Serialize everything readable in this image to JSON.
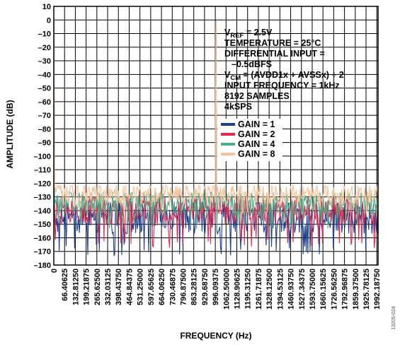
{
  "chart_data": {
    "type": "line",
    "title": "",
    "xlabel": "FREQUENCY (Hz)",
    "ylabel": "AMPLITUDE (dB)",
    "xlim": [
      0,
      2000
    ],
    "ylim": [
      -180,
      10
    ],
    "y_ticks": [
      "10",
      "0",
      "–10",
      "–20",
      "–30",
      "–40",
      "–50",
      "–60",
      "–70",
      "–80",
      "–90",
      "–100",
      "–110",
      "–120",
      "–130",
      "–140",
      "–150",
      "–160",
      "–170",
      "–180"
    ],
    "x_ticks": [
      0,
      66.40625,
      132.8125,
      199.21875,
      265.625,
      332.03125,
      398.4375,
      464.84375,
      531.25,
      597.65625,
      664.0625,
      730.46875,
      796.875,
      863.28125,
      929.6875,
      996.09375,
      1062.5,
      1128.90625,
      1195.3125,
      1261.71875,
      1328.125,
      1394.53125,
      1460.9375,
      1527.34375,
      1593.75,
      1660.15625,
      1726.5625,
      1792.96875,
      1859.375,
      1925.78125,
      1992.1875
    ],
    "x_tick_labels": [
      "0",
      "66.40625",
      "132.81250",
      "199.21875",
      "265.62500",
      "332.03125",
      "398.43750",
      "464.84375",
      "531.25000",
      "597.65625",
      "664.06250",
      "730.46875",
      "796.87500",
      "863.28125",
      "929.68750",
      "996.09375",
      "1062.50000",
      "1128.90625",
      "1195.31250",
      "1261.71875",
      "1328.12500",
      "1394.53125",
      "1460.93750",
      "1527.34375",
      "1593.75000",
      "1660.15625",
      "1726.56250",
      "1792.96875",
      "1859.37500",
      "1925.78125",
      "1992.18750"
    ],
    "grid": true,
    "annotations": [
      {
        "id": "vref",
        "main": "V",
        "sub": "REF",
        "rest": " = 2.5V"
      },
      {
        "id": "temp",
        "text": "TEMPERATURE = 25°C"
      },
      {
        "id": "diff1",
        "text": "DIFFERENTIAL INPUT ="
      },
      {
        "id": "diff2",
        "text": "–0.5dBFS"
      },
      {
        "id": "vcm",
        "main": "V",
        "sub": "CM",
        "rest": " = (AVDD1x + AVSSx) ÷ 2"
      },
      {
        "id": "freq",
        "text": "INPUT FREQUENCY = 1kHz"
      },
      {
        "id": "samples",
        "text": "8192 SAMPLES"
      },
      {
        "id": "rate",
        "text": "4kSPS"
      }
    ],
    "legend_position": "right",
    "series": [
      {
        "name": "GAIN = 1",
        "color": "#1f3f8c",
        "fundamental_hz": 1000,
        "fundamental_db": -0.5,
        "noise_floor_db": -145,
        "noise_spread_db": 12,
        "min_db": -173
      },
      {
        "name": "GAIN = 2",
        "color": "#e0294f",
        "fundamental_hz": 1000,
        "fundamental_db": -0.5,
        "noise_floor_db": -140,
        "noise_spread_db": 11,
        "min_db": -168
      },
      {
        "name": "GAIN = 4",
        "color": "#4fae8a",
        "fundamental_hz": 1000,
        "fundamental_db": -0.5,
        "noise_floor_db": -135,
        "noise_spread_db": 9,
        "min_db": -155
      },
      {
        "name": "GAIN = 8",
        "color": "#f5c39b",
        "fundamental_hz": 1000,
        "fundamental_db": -0.5,
        "noise_floor_db": -128,
        "noise_spread_db": 7,
        "min_db": -142
      }
    ],
    "figure_id": "13205-024"
  }
}
